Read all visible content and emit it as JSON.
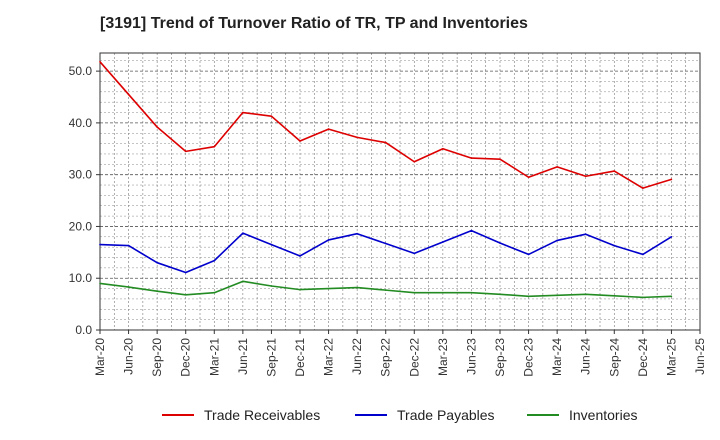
{
  "title": "[3191]  Trend of Turnover Ratio of TR, TP and Inventories",
  "chart_data": {
    "type": "line",
    "title": "[3191]  Trend of Turnover Ratio of TR, TP and Inventories",
    "xlabel": "",
    "ylabel": "",
    "ylim": [
      0,
      53.5
    ],
    "yticks": [
      "0.0",
      "10.0",
      "20.0",
      "30.0",
      "40.0",
      "50.0"
    ],
    "grid": true,
    "legend_position": "bottom",
    "x_tick_labels": [
      "Mar-20",
      "Jun-20",
      "Sep-20",
      "Dec-20",
      "Mar-21",
      "Jun-21",
      "Sep-21",
      "Dec-21",
      "Mar-22",
      "Jun-22",
      "Sep-22",
      "Dec-22",
      "Mar-23",
      "Jun-23",
      "Sep-23",
      "Dec-23",
      "Mar-24",
      "Jun-24",
      "Sep-24",
      "Dec-24",
      "Mar-25",
      "Jun-25"
    ],
    "categories": [
      "Mar-20",
      "Jun-20",
      "Sep-20",
      "Dec-20",
      "Mar-21",
      "Jun-21",
      "Sep-21",
      "Dec-21",
      "Mar-22",
      "Jun-22",
      "Sep-22",
      "Dec-22",
      "Mar-23",
      "Jun-23",
      "Sep-23",
      "Dec-23",
      "Mar-24",
      "Jun-24",
      "Sep-24",
      "Dec-24",
      "Mar-25"
    ],
    "series": [
      {
        "name": "Trade Receivables",
        "color": "#dd0000",
        "values": [
          51.8,
          45.5,
          39.2,
          34.5,
          35.4,
          42.0,
          41.3,
          36.5,
          38.8,
          37.2,
          36.2,
          32.5,
          35.0,
          33.2,
          33.0,
          29.5,
          31.5,
          29.7,
          30.7,
          27.4,
          29.1
        ]
      },
      {
        "name": "Trade Payables",
        "color": "#0000cc",
        "values": [
          16.5,
          16.3,
          13.0,
          11.1,
          13.4,
          18.7,
          16.5,
          14.3,
          17.4,
          18.6,
          16.7,
          14.8,
          17.0,
          19.2,
          16.8,
          14.6,
          17.3,
          18.5,
          16.3,
          14.6,
          18.0
        ]
      },
      {
        "name": "Inventories",
        "color": "#228b22",
        "values": [
          9.0,
          8.3,
          7.5,
          6.8,
          7.2,
          9.4,
          8.5,
          7.8,
          8.0,
          8.2,
          7.7,
          7.2,
          7.2,
          7.2,
          6.9,
          6.5,
          6.7,
          6.9,
          6.6,
          6.3,
          6.5
        ]
      }
    ]
  }
}
